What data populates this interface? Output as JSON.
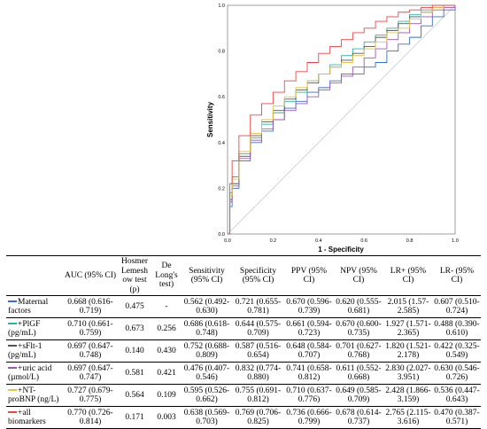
{
  "figure": {
    "x_label": "1 - Specificity",
    "y_label": "Sensitivity",
    "x_ticks": [
      "0.0",
      "0.2",
      "0.4",
      "0.6",
      "0.8",
      "1.0"
    ],
    "y_ticks": [
      "0.0",
      "0.2",
      "0.4",
      "0.6",
      "0.8",
      "1.0"
    ]
  },
  "chart_data": {
    "type": "line",
    "xlabel": "1 - Specificity",
    "ylabel": "Sensitivity",
    "xlim": [
      0,
      1
    ],
    "ylim": [
      0,
      1
    ],
    "grid": false,
    "series": [
      {
        "name": "Maternal factors",
        "color": "#3a6fc4",
        "x": [
          0,
          0.01,
          0.02,
          0.05,
          0.1,
          0.15,
          0.2,
          0.25,
          0.3,
          0.35,
          0.4,
          0.45,
          0.5,
          0.55,
          0.6,
          0.65,
          0.7,
          0.75,
          0.8,
          0.85,
          0.9,
          0.95,
          1.0
        ],
        "y": [
          0,
          0.12,
          0.2,
          0.32,
          0.4,
          0.45,
          0.5,
          0.55,
          0.58,
          0.62,
          0.64,
          0.67,
          0.7,
          0.7,
          0.73,
          0.75,
          0.8,
          0.83,
          0.86,
          0.91,
          0.95,
          0.98,
          1.0
        ]
      },
      {
        "name": "+PlGF (pg/mL)",
        "color": "#2bb5a0",
        "x": [
          0,
          0.01,
          0.02,
          0.05,
          0.1,
          0.15,
          0.2,
          0.25,
          0.3,
          0.35,
          0.4,
          0.45,
          0.5,
          0.55,
          0.6,
          0.65,
          0.7,
          0.75,
          0.8,
          0.85,
          0.9,
          0.95,
          1.0
        ],
        "y": [
          0,
          0.18,
          0.25,
          0.35,
          0.42,
          0.48,
          0.53,
          0.58,
          0.62,
          0.67,
          0.7,
          0.74,
          0.78,
          0.81,
          0.84,
          0.87,
          0.9,
          0.93,
          0.96,
          0.98,
          0.99,
          1.0,
          1.0
        ]
      },
      {
        "name": "+sFlt-1 (pg/mL)",
        "color": "#555555",
        "x": [
          0,
          0.01,
          0.02,
          0.05,
          0.1,
          0.15,
          0.2,
          0.25,
          0.3,
          0.35,
          0.4,
          0.45,
          0.5,
          0.55,
          0.6,
          0.65,
          0.7,
          0.75,
          0.8,
          0.85,
          0.9,
          0.95,
          1.0
        ],
        "y": [
          0,
          0.15,
          0.22,
          0.34,
          0.43,
          0.49,
          0.54,
          0.59,
          0.63,
          0.66,
          0.7,
          0.73,
          0.76,
          0.79,
          0.82,
          0.86,
          0.89,
          0.92,
          0.95,
          0.97,
          0.99,
          1.0,
          1.0
        ]
      },
      {
        "name": "+uric acid (µmol/L)",
        "color": "#9b59b6",
        "x": [
          0,
          0.01,
          0.02,
          0.05,
          0.1,
          0.15,
          0.2,
          0.25,
          0.3,
          0.35,
          0.4,
          0.45,
          0.5,
          0.55,
          0.6,
          0.65,
          0.7,
          0.75,
          0.8,
          0.85,
          0.9,
          0.95,
          1.0
        ],
        "y": [
          0,
          0.14,
          0.21,
          0.33,
          0.41,
          0.46,
          0.5,
          0.54,
          0.57,
          0.6,
          0.63,
          0.66,
          0.69,
          0.73,
          0.77,
          0.81,
          0.85,
          0.88,
          0.92,
          0.95,
          0.98,
          0.99,
          1.0
        ]
      },
      {
        "name": "+NT-proBNP (ng/L)",
        "color": "#e6c34a",
        "x": [
          0,
          0.01,
          0.02,
          0.05,
          0.1,
          0.15,
          0.2,
          0.25,
          0.3,
          0.35,
          0.4,
          0.45,
          0.5,
          0.55,
          0.6,
          0.65,
          0.7,
          0.75,
          0.8,
          0.85,
          0.9,
          0.95,
          1.0
        ],
        "y": [
          0,
          0.17,
          0.24,
          0.36,
          0.44,
          0.5,
          0.56,
          0.6,
          0.64,
          0.67,
          0.7,
          0.73,
          0.75,
          0.78,
          0.81,
          0.84,
          0.88,
          0.9,
          0.94,
          0.97,
          0.99,
          1.0,
          1.0
        ]
      },
      {
        "name": "+all biomarkers",
        "color": "#e8464a",
        "x": [
          0,
          0.01,
          0.02,
          0.05,
          0.1,
          0.15,
          0.2,
          0.25,
          0.3,
          0.35,
          0.4,
          0.45,
          0.5,
          0.55,
          0.6,
          0.65,
          0.7,
          0.75,
          0.8,
          0.85,
          0.9,
          0.95,
          1.0
        ],
        "y": [
          0,
          0.22,
          0.32,
          0.43,
          0.52,
          0.57,
          0.62,
          0.67,
          0.71,
          0.75,
          0.79,
          0.82,
          0.85,
          0.88,
          0.9,
          0.93,
          0.95,
          0.97,
          0.98,
          0.99,
          1.0,
          1.0,
          1.0
        ]
      }
    ]
  },
  "table": {
    "headers": [
      "",
      "AUC (95% CI)",
      "Hosmer Lemesh ow test (p)",
      "De Long's test)",
      "Sensitivity (95% CI)",
      "Specificity (95% CI)",
      "PPV (95% CI)",
      "NPV (95% CI)",
      "LR+ (95% CI)",
      "LR- (95% CI)"
    ],
    "rows": [
      {
        "label": "Maternal factors",
        "color": "#3a6fc4",
        "cells": [
          "0.668 (0.616-0.719)",
          "0.475",
          "-",
          "0.562 (0.492-0.630)",
          "0.721 (0.655-0.781)",
          "0.670 (0.596-0.739)",
          "0.620 (0.555-0.681)",
          "2.015 (1.57-2.585)",
          "0.607 (0.510-0.724)"
        ]
      },
      {
        "label": "+PlGF (pg/mL)",
        "color": "#2bb5a0",
        "cells": [
          "0.710 (0.661-0.759)",
          "0.673",
          "0.256",
          "0.686 (0.618-0.748)",
          "0.644 (0.575-0.709)",
          "0.661 (0.594-0.723)",
          "0.670 (0.600-0.735)",
          "1.927 (1.571-2.365)",
          "0.488 (0.390-0.610)"
        ]
      },
      {
        "label": "+sFlt-1 (pg/mL)",
        "color": "#555555",
        "cells": [
          "0.697 (0.647-0.748)",
          "0.140",
          "0.430",
          "0.752 (0.688-0.809)",
          "0.587 (0.516-0.654)",
          "0.648 (0.584-0.707)",
          "0.701 (0.627-0.768)",
          "1.820 (1.521-2.178)",
          "0.422 (0.325-0.549)"
        ]
      },
      {
        "label": "+uric acid (µmol/L)",
        "color": "#9b59b6",
        "cells": [
          "0.697 (0.647-0.747)",
          "0.581",
          "0.421",
          "0.476 (0.407-0.546)",
          "0.832 (0.774-0.880)",
          "0.741 (0.658-0.812)",
          "0.611 (0.552-0.668)",
          "2.830 (2.027-3.951)",
          "0.630 (0.546-0.726)"
        ]
      },
      {
        "label": "+NT-proBNP (ng/L)",
        "color": "#e6c34a",
        "cells": [
          "0.727 (0.679-0.775)",
          "0.564",
          "0.109",
          "0.595 (0.526-0.662)",
          "0.755 (0.691-0.812)",
          "0.710 (0.637-0.776)",
          "0.649 (0.585-0.709)",
          "2.428 (1.866-3.159)",
          "0.536 (0.447-0.643)"
        ]
      },
      {
        "label": "+all biomarkers",
        "color": "#e8464a",
        "cells": [
          "0.770 (0.726-0.814)",
          "0.171",
          "0.003",
          "0.638 (0.569-0.703)",
          "0.769 (0.706-0.825)",
          "0.736 (0.666-0.799)",
          "0.678 (0.614-0.737)",
          "2.765 (2.115-3.616)",
          "0.470 (0.387-0.571)"
        ]
      }
    ]
  }
}
